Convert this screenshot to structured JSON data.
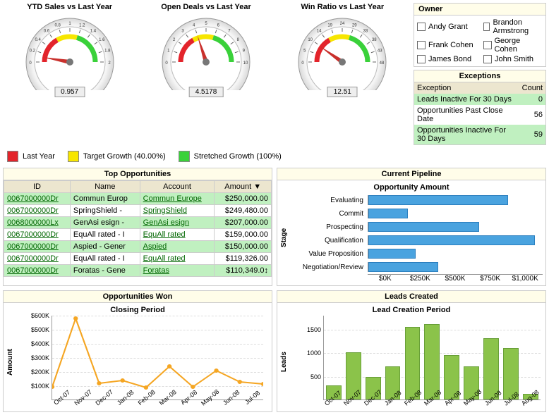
{
  "gauges": [
    {
      "title": "YTD Sales vs Last Year",
      "value": "0.957",
      "needle_angle": -80,
      "ticks": [
        "0",
        "0.2",
        "0.4",
        "0.6",
        "0.8",
        "1",
        "1.2",
        "1.4",
        "1.6",
        "1.8",
        "2"
      ]
    },
    {
      "title": "Open Deals vs Last Year",
      "value": "4.5178",
      "needle_angle": -18,
      "ticks": [
        "0",
        "1",
        "2",
        "3",
        "4",
        "5",
        "6",
        "7",
        "8",
        "9",
        "10"
      ]
    },
    {
      "title": "Win Ratio vs Last Year",
      "value": "12.51",
      "needle_angle": -55,
      "ticks": [
        "0",
        "5",
        "10",
        "14",
        "19",
        "24",
        "29",
        "33",
        "38",
        "43",
        "48"
      ]
    }
  ],
  "gauge_style": {
    "arc_red": "#e3242b",
    "arc_yellow": "#f7e600",
    "arc_green": "#3ad13a",
    "rim_outer": "#d8d8d8",
    "rim_inner": "#f5f5f5",
    "face": "#ffffff",
    "needle": "#c9302c"
  },
  "legend": [
    {
      "color": "#e3242b",
      "label": "Last Year"
    },
    {
      "color": "#f7e600",
      "label": "Target Growth (40.00%)"
    },
    {
      "color": "#3ad13a",
      "label": "Stretched Growth (100%)"
    }
  ],
  "owner": {
    "title": "Owner",
    "items": [
      "Andy Grant",
      "Brandon Armstrong",
      "Frank Cohen",
      "George Cohen",
      "James Bond",
      "John Smith"
    ]
  },
  "exceptions": {
    "title": "Exceptions",
    "cols": [
      "Exception",
      "Count"
    ],
    "rows": [
      {
        "label": "Leads Inactive For 30 Days",
        "count": "0",
        "hl": true
      },
      {
        "label": "Opportunities Past Close Date",
        "count": "56",
        "hl": false
      },
      {
        "label": "Opportunities Inactive For 30 Days",
        "count": "59",
        "hl": true
      }
    ]
  },
  "top_opps": {
    "title": "Top Opportunities",
    "cols": [
      "ID",
      "Name",
      "Account",
      "Amount"
    ],
    "sort_col": 3,
    "rows": [
      {
        "id": "0067000000Dr",
        "name": "Commun Europ",
        "account": "Commun Europe",
        "amount": "$250,000.00",
        "hl": true
      },
      {
        "id": "0067000000Dr",
        "name": "SpringShield -",
        "account": "SpringShield",
        "amount": "$249,480.00",
        "hl": false
      },
      {
        "id": "0068000000Lx",
        "name": "GenAsi esign -",
        "account": "GenAsi esign",
        "amount": "$207,000.00",
        "hl": true
      },
      {
        "id": "0067000000Dr",
        "name": "EquAll rated - I",
        "account": "EquAll rated",
        "amount": "$159,000.00",
        "hl": false
      },
      {
        "id": "0067000000Dr",
        "name": "Aspied - Gener",
        "account": "Aspied",
        "amount": "$150,000.00",
        "hl": true
      },
      {
        "id": "0067000000Dr",
        "name": "EquAll rated - I",
        "account": "EquAll rated",
        "amount": "$119,326.00",
        "hl": false
      },
      {
        "id": "0067000000Dr",
        "name": "Foratas - Gene",
        "account": "Foratas",
        "amount": "$110,349.0↕",
        "hl": true
      }
    ]
  },
  "pipeline": {
    "title": "Current Pipeline",
    "subtitle": "Opportunity Amount",
    "y_label": "Stage",
    "max": 1100000,
    "ticks": [
      "$0K",
      "$250K",
      "$500K",
      "$750K",
      "$1,000K"
    ],
    "bar_color": "#4aa3df",
    "rows": [
      {
        "label": "Evaluating",
        "value": 880000
      },
      {
        "label": "Commit",
        "value": 250000
      },
      {
        "label": "Prospecting",
        "value": 700000
      },
      {
        "label": "Qualification",
        "value": 1050000
      },
      {
        "label": "Value Proposition",
        "value": 300000
      },
      {
        "label": "Negotiation/Review",
        "value": 440000
      }
    ]
  },
  "won": {
    "title": "Opportunities Won",
    "subtitle": "Closing Period",
    "y_label": "Amount",
    "line_color": "#f5a623",
    "ymax": 600000,
    "yticks": [
      "$100K",
      "$200K",
      "$300K",
      "$400K",
      "$500K",
      "$600K"
    ],
    "xticks": [
      "Oct-07",
      "Nov-07",
      "Dec-07",
      "Jan-08",
      "Feb-08",
      "Mar-08",
      "Apr-08",
      "May-08",
      "Jun-08",
      "Jul-08"
    ],
    "values": [
      95000,
      580000,
      120000,
      140000,
      90000,
      240000,
      95000,
      210000,
      130000,
      115000
    ]
  },
  "leads": {
    "title": "Leads Created",
    "subtitle": "Lead Creation Period",
    "y_label": "Leads",
    "bar_color": "#8bc34a",
    "ymax": 1800,
    "yticks": [
      "500",
      "1000",
      "1500"
    ],
    "xticks": [
      "Oct-07",
      "Nov-07",
      "Dec-07",
      "Jan-08",
      "Feb-08",
      "Mar-08",
      "Apr-08",
      "May-08",
      "Jun-08",
      "Jul-08",
      "Aug-08"
    ],
    "values": [
      300,
      1000,
      480,
      700,
      1550,
      1600,
      950,
      700,
      1300,
      1100,
      120
    ]
  }
}
